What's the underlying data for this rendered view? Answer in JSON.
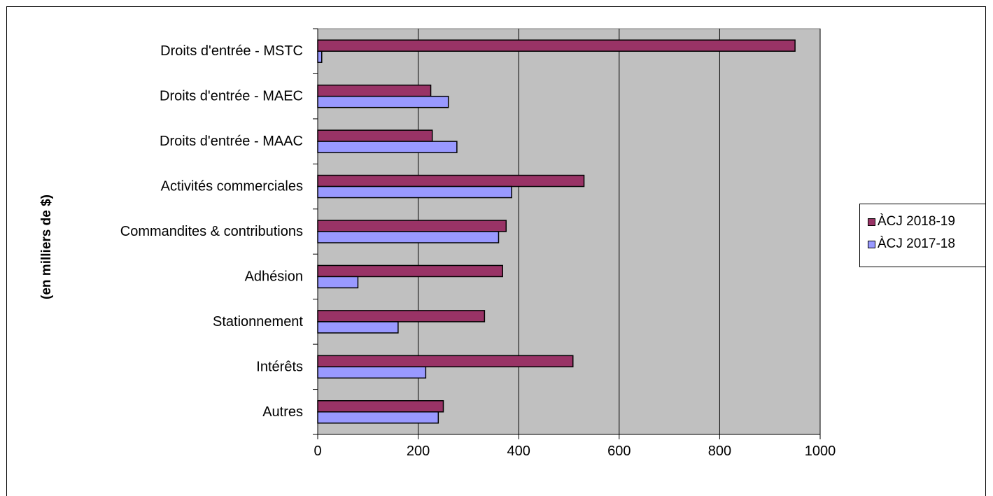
{
  "chart_data": {
    "type": "bar",
    "orientation": "horizontal",
    "title": "",
    "xlabel": "",
    "ylabel": "(en milliers de $)",
    "categories": [
      "Droits d'entrée - MSTC",
      "Droits d'entrée - MAEC",
      "Droits d'entrée - MAAC",
      "Activités commerciales",
      "Commandites & contributions",
      "Adhésion",
      "Stationnement",
      "Intérêts",
      "Autres"
    ],
    "series": [
      {
        "name": "ÀCJ 2018-19",
        "color": "#993366",
        "values": [
          950,
          225,
          228,
          530,
          375,
          368,
          332,
          508,
          250
        ]
      },
      {
        "name": "ÀCJ 2017-18",
        "color": "#9999ff",
        "values": [
          8,
          260,
          277,
          386,
          360,
          80,
          160,
          215,
          240
        ]
      }
    ],
    "xlim": [
      0,
      1000
    ],
    "xticks": [
      0,
      200,
      400,
      600,
      800,
      1000
    ],
    "grid": "vertical",
    "plot_background": "#c0c0c0",
    "legend_position": "right"
  }
}
